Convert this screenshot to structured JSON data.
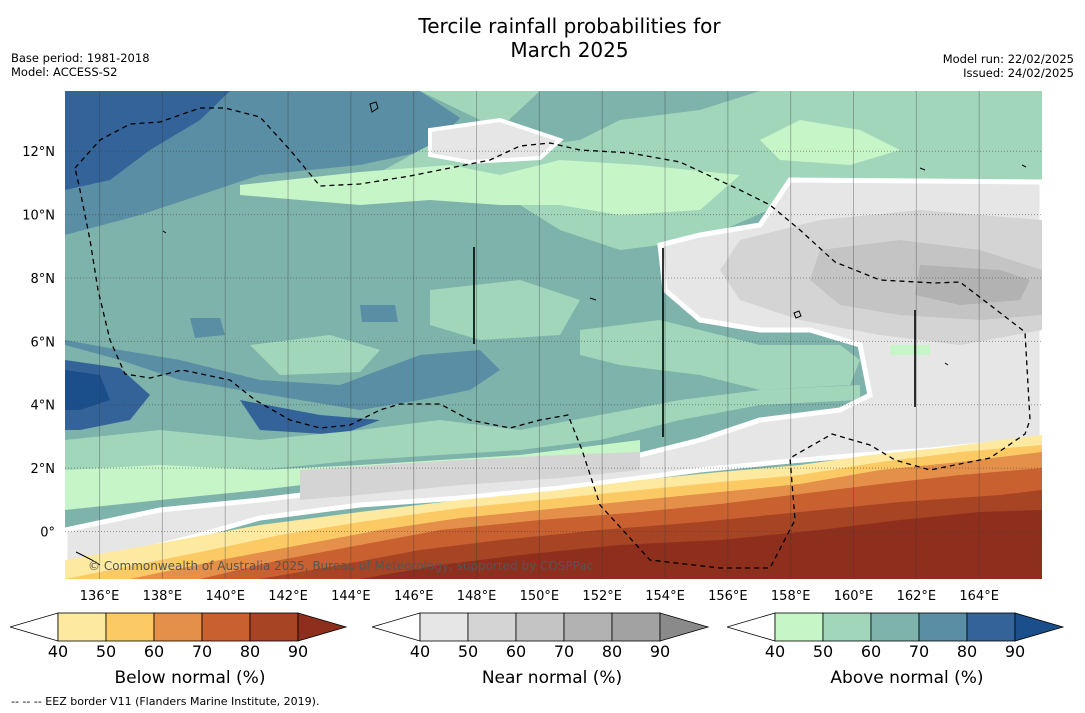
{
  "title_line1": "Tercile rainfall probabilities for",
  "title_line2": "March 2025",
  "base_period": "Base period: 1981-2018",
  "model": "Model: ACCESS-S2",
  "model_run": "Model run: 22/02/2025",
  "issued": "Issued: 24/02/2025",
  "copyright": "© Commonwealth of Australia 2025, Bureau of Meteorology, supported by COSPPac",
  "footnote": "--  --  -- EEZ border V11 (Flanders Marine Institute, 2019).",
  "map": {
    "lon_labels": [
      "136°E",
      "138°E",
      "140°E",
      "142°E",
      "144°E",
      "146°E",
      "148°E",
      "150°E",
      "152°E",
      "154°E",
      "156°E",
      "158°E",
      "160°E",
      "162°E",
      "164°E"
    ],
    "lat_labels": [
      "12°N",
      "10°N",
      "8°N",
      "6°N",
      "4°N",
      "2°N",
      "0°"
    ]
  },
  "colorbars": [
    {
      "title": "Below normal (%)",
      "ticks": [
        "40",
        "50",
        "60",
        "70",
        "80",
        "90"
      ],
      "colors": [
        "#ffffff",
        "#fdeaa0",
        "#fcca64",
        "#e4904a",
        "#c8612f",
        "#a74424",
        "#8e2e1c"
      ]
    },
    {
      "title": "Near normal (%)",
      "ticks": [
        "40",
        "50",
        "60",
        "70",
        "80",
        "90"
      ],
      "colors": [
        "#ffffff",
        "#e6e6e6",
        "#d4d4d4",
        "#c4c4c4",
        "#b2b2b2",
        "#a2a2a2",
        "#8a8a8a"
      ]
    },
    {
      "title": "Above normal (%)",
      "ticks": [
        "40",
        "50",
        "60",
        "70",
        "80",
        "90"
      ],
      "colors": [
        "#ffffff",
        "#c6f5c8",
        "#a1d6bb",
        "#7eb3ac",
        "#5a8ea4",
        "#336399",
        "#1a4f8c"
      ]
    }
  ]
}
